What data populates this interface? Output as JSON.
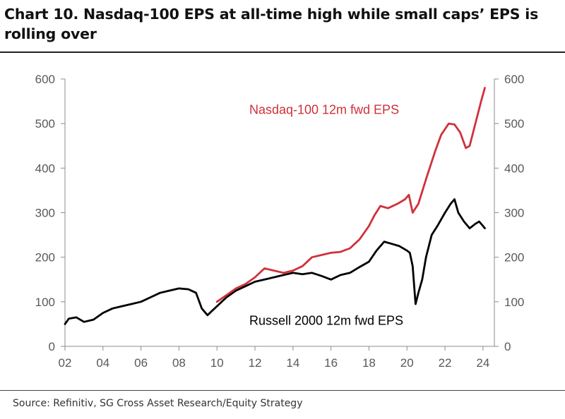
{
  "figure": {
    "title": "Chart 10. Nasdaq-100 EPS at all-time high while small caps’ EPS is rolling over",
    "source": "Source: Refinitiv, SG Cross Asset Research/Equity Strategy"
  },
  "chart_data": {
    "type": "line",
    "title": "Chart 10. Nasdaq-100 EPS at all-time high while small caps’ EPS is rolling over",
    "xlabel": "",
    "ylabel": "",
    "xlim": [
      2002,
      2024.6
    ],
    "ylim": [
      0,
      600
    ],
    "x_ticks": [
      2002,
      2004,
      2006,
      2008,
      2010,
      2012,
      2014,
      2016,
      2018,
      2020,
      2022,
      2024
    ],
    "x_tick_labels": [
      "02",
      "04",
      "06",
      "08",
      "10",
      "12",
      "14",
      "16",
      "18",
      "20",
      "22",
      "24"
    ],
    "y_ticks": [
      0,
      100,
      200,
      300,
      400,
      500,
      600
    ],
    "y_tick_labels": [
      "0",
      "100",
      "200",
      "300",
      "400",
      "500",
      "600"
    ],
    "secondary_y_ticks": [
      0,
      100,
      200,
      300,
      400,
      500,
      600
    ],
    "secondary_y_tick_labels": [
      "0",
      "100",
      "200",
      "300",
      "400",
      "500",
      "600"
    ],
    "grid": false,
    "legend": "none (inline series labels)",
    "series": [
      {
        "name": "Nasdaq-100 12m fwd EPS",
        "color": "#d0313a",
        "x": [
          2010.0,
          2010.5,
          2011.0,
          2011.5,
          2012.0,
          2012.5,
          2013.0,
          2013.5,
          2014.0,
          2014.5,
          2015.0,
          2015.5,
          2016.0,
          2016.5,
          2017.0,
          2017.5,
          2018.0,
          2018.3,
          2018.6,
          2019.0,
          2019.5,
          2019.9,
          2020.1,
          2020.3,
          2020.6,
          2021.0,
          2021.5,
          2021.8,
          2022.2,
          2022.5,
          2022.8,
          2023.1,
          2023.3,
          2023.6,
          2023.9,
          2024.1
        ],
        "y": [
          100,
          115,
          130,
          140,
          155,
          175,
          170,
          165,
          170,
          180,
          200,
          205,
          210,
          212,
          220,
          240,
          270,
          295,
          315,
          310,
          320,
          330,
          340,
          300,
          320,
          375,
          440,
          475,
          500,
          498,
          480,
          445,
          450,
          500,
          550,
          580
        ]
      },
      {
        "name": "Russell 2000 12m fwd EPS",
        "color": "#000000",
        "x": [
          2002.0,
          2002.2,
          2002.6,
          2003.0,
          2003.5,
          2004.0,
          2004.5,
          2005.0,
          2005.5,
          2006.0,
          2006.5,
          2007.0,
          2007.5,
          2008.0,
          2008.5,
          2008.9,
          2009.2,
          2009.5,
          2010.0,
          2010.5,
          2011.0,
          2011.5,
          2012.0,
          2012.5,
          2013.0,
          2013.5,
          2014.0,
          2014.5,
          2015.0,
          2015.5,
          2016.0,
          2016.5,
          2017.0,
          2017.5,
          2018.0,
          2018.4,
          2018.8,
          2019.2,
          2019.6,
          2020.0,
          2020.15,
          2020.3,
          2020.45,
          2020.6,
          2020.8,
          2021.0,
          2021.3,
          2021.6,
          2022.0,
          2022.3,
          2022.5,
          2022.7,
          2023.0,
          2023.3,
          2023.6,
          2023.8,
          2024.0,
          2024.1
        ],
        "y": [
          50,
          62,
          65,
          55,
          60,
          75,
          85,
          90,
          95,
          100,
          110,
          120,
          125,
          130,
          128,
          120,
          85,
          70,
          90,
          110,
          125,
          135,
          145,
          150,
          155,
          160,
          165,
          162,
          165,
          158,
          150,
          160,
          165,
          178,
          190,
          215,
          235,
          230,
          225,
          215,
          210,
          180,
          95,
          120,
          150,
          200,
          250,
          270,
          300,
          320,
          330,
          300,
          280,
          265,
          275,
          280,
          270,
          265
        ]
      }
    ],
    "annotations": [
      {
        "text": "Nasdaq-100 12m fwd EPS",
        "color": "#d0313a",
        "anchor_x": 2011.7,
        "anchor_y": 522
      },
      {
        "text": "Russell 2000 12m fwd EPS",
        "color": "#000000",
        "anchor_x": 2011.7,
        "anchor_y": 48
      }
    ]
  }
}
